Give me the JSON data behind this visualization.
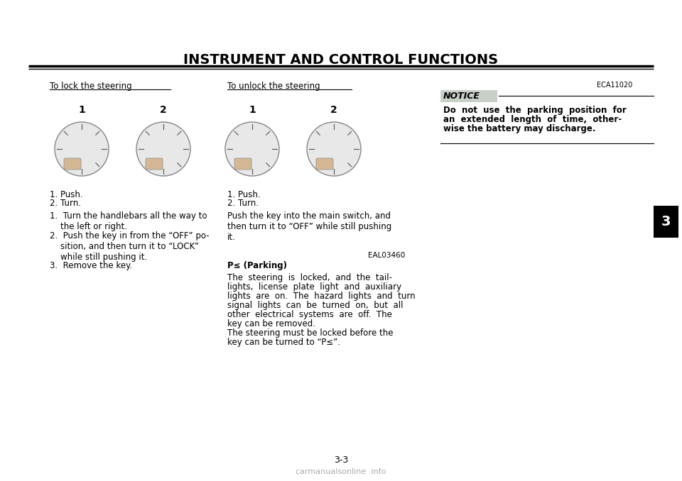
{
  "title": "INSTRUMENT AND CONTROL FUNCTIONS",
  "page_number": "3-3",
  "chapter_number": "3",
  "background_color": "#ffffff",
  "title_color": "#000000",
  "title_fontsize": 14,
  "header_line_color": "#000000",
  "sections": {
    "left": {
      "heading": "To lock the steering",
      "items": [
        "1. Push.",
        "2. Turn."
      ],
      "instructions": [
        "1. Turn the handlebars all the way to\n     the left or right.",
        "2. Push the key in from the “OFF” po-\n     sition, and then turn it to “LOCK”\n     while still pushing it.",
        "3. Remove the key."
      ]
    },
    "middle": {
      "heading": "To unlock the steering",
      "items": [
        "1. Push.",
        "2. Turn."
      ],
      "instruction": "Push the key into the main switch, and\nthen turn it to “OFF” while still pushing\nit.",
      "parking_code": "EAL03460",
      "parking_heading": "P≤ (Parking)",
      "parking_text": "The  steering  is  locked,  and  the  tail-\nlights,  license  plate  light  and  auxiliary\nlights  are  on.  The  hazard  lights  and  turn\nsignal  lights  can  be  turned  on,  but  all\nother  electrical  systems  are  off.  The\nkey can be removed.\nThe steering must be locked before the\nkey can be turned to “P≤”."
    },
    "right": {
      "notice_code": "ECA11020",
      "notice_heading": "NOTICE",
      "notice_bg": "#c8d0c8",
      "notice_text": "Do  not  use  the  parking  position  for\nan  extended  length  of  time,  other-\nwise the battery may discharge."
    }
  }
}
